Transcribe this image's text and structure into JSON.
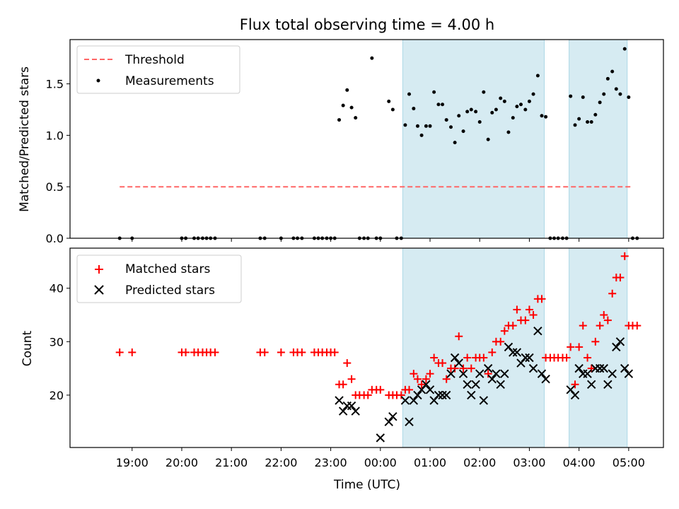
{
  "chart_data": {
    "type": "scatter",
    "title": "Flux total observing time = 4.00 h",
    "x_unit": "hours relative to 00:00 UTC",
    "xlabel": "Time (UTC)",
    "xlim": [
      -6.25,
      5.7
    ],
    "x_ticks": [
      {
        "value": -5,
        "label": "19:00"
      },
      {
        "value": -4,
        "label": "20:00"
      },
      {
        "value": -3,
        "label": "21:00"
      },
      {
        "value": -2,
        "label": "22:00"
      },
      {
        "value": -1,
        "label": "23:00"
      },
      {
        "value": 0,
        "label": "00:00"
      },
      {
        "value": 1,
        "label": "01:00"
      },
      {
        "value": 2,
        "label": "02:00"
      },
      {
        "value": 3,
        "label": "03:00"
      },
      {
        "value": 4,
        "label": "04:00"
      },
      {
        "value": 5,
        "label": "05:00"
      }
    ],
    "shaded_intervals": [
      [
        0.45,
        3.3
      ],
      [
        3.8,
        4.97
      ]
    ],
    "shade_color": "#add8e6",
    "top": {
      "ylabel": "Matched/Predicted stars",
      "ylim": [
        0,
        1.93
      ],
      "y_ticks": [
        {
          "value": 0.0,
          "label": "0.0"
        },
        {
          "value": 0.5,
          "label": "0.5"
        },
        {
          "value": 1.0,
          "label": "1.0"
        },
        {
          "value": 1.5,
          "label": "1.5"
        }
      ],
      "legend": {
        "position": "upper-left",
        "threshold_label": "Threshold",
        "measurements_label": "Measurements"
      },
      "threshold": {
        "value": 0.5,
        "x_range": [
          -5.25,
          5.08
        ],
        "color": "#ff6666"
      },
      "measurements": {
        "color": "#000000",
        "x": [
          -5.25,
          -5.0,
          -4.0,
          -3.92,
          -3.75,
          -3.67,
          -3.58,
          -3.5,
          -3.42,
          -3.33,
          -2.42,
          -2.33,
          -2.0,
          -1.75,
          -1.67,
          -1.58,
          -1.33,
          -1.25,
          -1.17,
          -1.08,
          -1.0,
          -0.92,
          -0.83,
          -0.75,
          -0.67,
          -0.58,
          -0.5,
          -0.42,
          -0.33,
          -0.25,
          -0.17,
          -0.08,
          0.0,
          0.17,
          0.25,
          0.33,
          0.42,
          0.5,
          0.58,
          0.67,
          0.75,
          0.83,
          0.92,
          1.0,
          1.08,
          1.17,
          1.25,
          1.33,
          1.42,
          1.5,
          1.58,
          1.67,
          1.75,
          1.83,
          1.92,
          2.0,
          2.08,
          2.17,
          2.25,
          2.33,
          2.42,
          2.5,
          2.58,
          2.67,
          2.75,
          2.83,
          2.92,
          3.0,
          3.08,
          3.17,
          3.25,
          3.33,
          3.42,
          3.5,
          3.58,
          3.67,
          3.75,
          3.83,
          3.92,
          4.0,
          4.08,
          4.17,
          4.25,
          4.33,
          4.42,
          4.5,
          4.58,
          4.67,
          4.75,
          4.83,
          4.92,
          5.0,
          5.08,
          5.17
        ],
        "y": [
          0,
          0,
          0,
          0,
          0,
          0,
          0,
          0,
          0,
          0,
          0,
          0,
          0,
          0,
          0,
          0,
          0,
          0,
          0,
          0,
          0,
          0,
          1.15,
          1.29,
          1.44,
          1.27,
          1.17,
          0,
          0,
          0,
          1.75,
          0,
          0,
          1.33,
          1.25,
          0,
          0,
          1.1,
          1.4,
          1.26,
          1.09,
          1.0,
          1.09,
          1.09,
          1.42,
          1.3,
          1.3,
          1.15,
          1.08,
          0.93,
          1.19,
          1.04,
          1.23,
          1.25,
          1.23,
          1.13,
          1.42,
          0.96,
          1.22,
          1.25,
          1.36,
          1.33,
          1.03,
          1.17,
          1.28,
          1.3,
          1.25,
          1.33,
          1.4,
          1.58,
          1.19,
          1.18,
          0,
          0,
          0,
          0,
          0,
          1.38,
          1.1,
          1.16,
          1.37,
          1.13,
          1.13,
          1.2,
          1.32,
          1.4,
          1.55,
          1.62,
          1.45,
          1.4,
          1.84,
          1.37,
          0,
          0
        ]
      }
    },
    "bottom": {
      "ylabel": "Count",
      "ylim": [
        10.2,
        47.5
      ],
      "y_ticks": [
        {
          "value": 20,
          "label": "20"
        },
        {
          "value": 30,
          "label": "30"
        },
        {
          "value": 40,
          "label": "40"
        }
      ],
      "legend": {
        "position": "upper-left"
      },
      "series": [
        {
          "name": "Matched stars",
          "marker": "plus",
          "color": "#ff0000",
          "x": [
            -5.25,
            -5.0,
            -4.0,
            -3.92,
            -3.75,
            -3.67,
            -3.58,
            -3.5,
            -3.42,
            -3.33,
            -2.42,
            -2.33,
            -2.0,
            -1.75,
            -1.67,
            -1.58,
            -1.33,
            -1.25,
            -1.17,
            -1.08,
            -1.0,
            -0.92,
            -0.83,
            -0.75,
            -0.67,
            -0.58,
            -0.5,
            -0.42,
            -0.33,
            -0.25,
            -0.17,
            -0.08,
            0.0,
            0.17,
            0.25,
            0.33,
            0.42,
            0.5,
            0.58,
            0.67,
            0.75,
            0.83,
            0.92,
            1.0,
            1.08,
            1.17,
            1.25,
            1.33,
            1.42,
            1.5,
            1.58,
            1.67,
            1.75,
            1.83,
            1.92,
            2.0,
            2.08,
            2.17,
            2.25,
            2.33,
            2.42,
            2.5,
            2.58,
            2.67,
            2.75,
            2.83,
            2.92,
            3.0,
            3.08,
            3.17,
            3.25,
            3.33,
            3.42,
            3.5,
            3.58,
            3.67,
            3.75,
            3.83,
            3.92,
            4.0,
            4.08,
            4.17,
            4.25,
            4.33,
            4.42,
            4.5,
            4.58,
            4.67,
            4.75,
            4.83,
            4.92,
            5.0,
            5.08,
            5.17
          ],
          "y": [
            28,
            28,
            28,
            28,
            28,
            28,
            28,
            28,
            28,
            28,
            28,
            28,
            28,
            28,
            28,
            28,
            28,
            28,
            28,
            28,
            28,
            28,
            22,
            22,
            26,
            23,
            20,
            20,
            20,
            20,
            21,
            21,
            21,
            20,
            20,
            20,
            20,
            21,
            21,
            24,
            23,
            22,
            23,
            24,
            27,
            26,
            26,
            23,
            25,
            25,
            31,
            25,
            27,
            25,
            27,
            27,
            27,
            24,
            28,
            30,
            30,
            32,
            33,
            33,
            36,
            34,
            34,
            36,
            35,
            38,
            38,
            27,
            27,
            27,
            27,
            27,
            27,
            29,
            22,
            29,
            33,
            27,
            25,
            30,
            33,
            35,
            34,
            39,
            42,
            42,
            46,
            33,
            33,
            33
          ]
        },
        {
          "name": "Predicted stars",
          "marker": "x",
          "color": "#000000",
          "x": [
            -0.83,
            -0.75,
            -0.67,
            -0.58,
            -0.5,
            0.0,
            0.17,
            0.25,
            0.5,
            0.58,
            0.67,
            0.75,
            0.83,
            0.92,
            1.0,
            1.08,
            1.17,
            1.25,
            1.33,
            1.42,
            1.5,
            1.58,
            1.67,
            1.75,
            1.83,
            1.92,
            2.0,
            2.08,
            2.17,
            2.25,
            2.33,
            2.42,
            2.5,
            2.58,
            2.67,
            2.75,
            2.83,
            2.92,
            3.0,
            3.08,
            3.17,
            3.25,
            3.33,
            3.83,
            3.92,
            4.0,
            4.08,
            4.17,
            4.25,
            4.33,
            4.42,
            4.5,
            4.58,
            4.67,
            4.75,
            4.83,
            4.92,
            5.0
          ],
          "y": [
            19,
            17,
            18,
            18,
            17,
            12,
            15,
            16,
            19,
            15,
            19,
            20,
            21,
            22,
            21,
            19,
            20,
            20,
            20,
            24,
            27,
            26,
            24,
            22,
            20,
            22,
            24,
            19,
            25,
            23,
            24,
            22,
            24,
            29,
            28,
            28,
            26,
            27,
            27,
            25,
            32,
            24,
            23,
            21,
            20,
            25,
            24,
            24,
            22,
            25,
            25,
            25,
            22,
            24,
            29,
            30,
            25,
            24
          ]
        }
      ]
    }
  }
}
